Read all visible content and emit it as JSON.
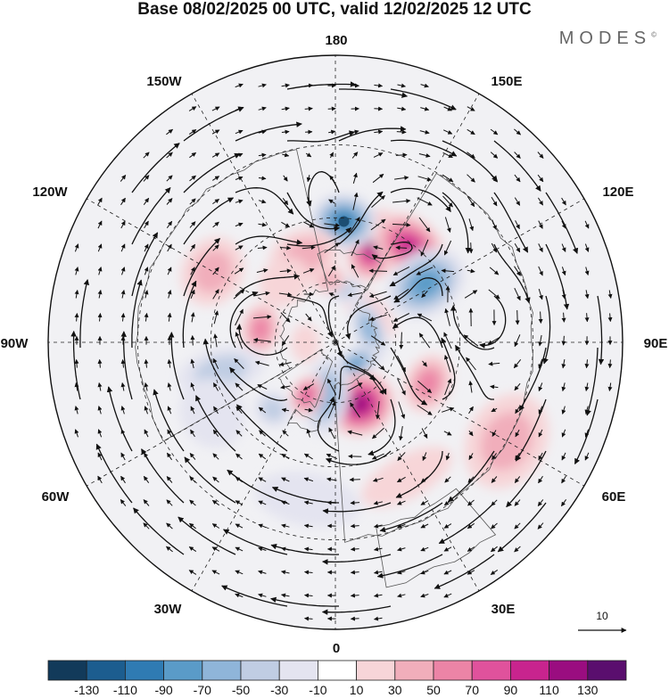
{
  "title": "Base 08/02/2025 00 UTC, valid 12/02/2025 12 UTC",
  "brand": "MODES",
  "brand_mark": "©",
  "longitude_labels": {
    "top": "180",
    "top_left": "150W",
    "top_right": "150E",
    "upper_left": "120W",
    "upper_right": "120E",
    "left": "90W",
    "right": "90E",
    "lower_left": "60W",
    "lower_right": "60E",
    "bottom_left": "30W",
    "bottom_right": "30E",
    "bottom": "0"
  },
  "vector_reference": {
    "label": "10"
  },
  "colorbar": {
    "colors": [
      "#123a5a",
      "#1c5d8f",
      "#2f7bb3",
      "#5a9bc8",
      "#8fb5d9",
      "#c0cde3",
      "#e4e4f0",
      "#ffffff",
      "#f7d5d8",
      "#f1aebb",
      "#ec84a6",
      "#e0529c",
      "#c8248e",
      "#9a0d80",
      "#5a0e6e"
    ],
    "labels": [
      "-130",
      "-110",
      "-90",
      "-70",
      "-50",
      "-30",
      "-10",
      "10",
      "30",
      "50",
      "70",
      "90",
      "110",
      "130"
    ]
  },
  "anomalies": [
    {
      "lon": 158,
      "colat": 34,
      "value": 120,
      "rx": 30,
      "ry": 42
    },
    {
      "lon": 176,
      "colat": 39,
      "value": -100,
      "rx": 38,
      "ry": 32
    },
    {
      "lon": 142,
      "colat": 39,
      "value": 90,
      "rx": 46,
      "ry": 33
    },
    {
      "lon": 123,
      "colat": 35,
      "value": -80,
      "rx": 36,
      "ry": 48
    },
    {
      "lon": 134,
      "colat": 15,
      "value": 40,
      "rx": 40,
      "ry": 18
    },
    {
      "lon": 110,
      "colat": 12,
      "value": -50,
      "rx": 38,
      "ry": 18
    },
    {
      "lon": 172,
      "colat": 18,
      "value": -40,
      "rx": 24,
      "ry": 16
    },
    {
      "lon": 186,
      "colat": 21,
      "value": 30,
      "rx": 20,
      "ry": 16
    },
    {
      "lon": 260,
      "colat": 25,
      "value": 60,
      "rx": 30,
      "ry": 22
    },
    {
      "lon": 272,
      "colat": 10,
      "value": 20,
      "rx": 22,
      "ry": 16
    },
    {
      "lon": 284,
      "colat": 38,
      "value": -40,
      "rx": 26,
      "ry": 50
    },
    {
      "lon": 66,
      "colat": 33,
      "value": 60,
      "rx": 34,
      "ry": 26
    },
    {
      "lon": 36,
      "colat": 10,
      "value": -80,
      "rx": 36,
      "ry": 18
    },
    {
      "lon": 22,
      "colat": 22,
      "value": 110,
      "rx": 40,
      "ry": 36
    },
    {
      "lon": 350,
      "colat": 18,
      "value": -60,
      "rx": 26,
      "ry": 46
    },
    {
      "lon": 332,
      "colat": 20,
      "value": 80,
      "rx": 18,
      "ry": 24
    },
    {
      "lon": 317,
      "colat": 30,
      "value": -30,
      "rx": 22,
      "ry": 20
    },
    {
      "lon": 60,
      "colat": 60,
      "value": 40,
      "rx": 56,
      "ry": 44
    },
    {
      "lon": 28,
      "colat": 48,
      "value": 20,
      "rx": 56,
      "ry": 24
    },
    {
      "lon": 300,
      "colat": 45,
      "value": -20,
      "rx": 40,
      "ry": 36
    },
    {
      "lon": 350,
      "colat": 50,
      "value": -20,
      "rx": 60,
      "ry": 30
    },
    {
      "lon": 200,
      "colat": 30,
      "value": 30,
      "rx": 40,
      "ry": 30
    },
    {
      "lon": 220,
      "colat": 26,
      "value": 20,
      "rx": 30,
      "ry": 26
    },
    {
      "lon": 240,
      "colat": 45,
      "value": 30,
      "rx": 40,
      "ry": 34
    }
  ],
  "cyclones": [
    {
      "lon": 158,
      "colat": 34,
      "dir": 1,
      "r": 34
    },
    {
      "lon": 176,
      "colat": 39,
      "dir": -1,
      "r": 34
    },
    {
      "lon": 142,
      "colat": 39,
      "dir": 1,
      "r": 40
    },
    {
      "lon": 123,
      "colat": 35,
      "dir": -1,
      "r": 36
    },
    {
      "lon": 66,
      "colat": 33,
      "dir": -1,
      "r": 26
    },
    {
      "lon": 22,
      "colat": 22,
      "dir": 1,
      "r": 30
    },
    {
      "lon": 260,
      "colat": 25,
      "dir": 1,
      "r": 24
    },
    {
      "lon": 110,
      "colat": 12,
      "dir": -1,
      "r": 22
    },
    {
      "lon": 350,
      "colat": 18,
      "dir": -1,
      "r": 20
    },
    {
      "lon": 90,
      "colat": 28,
      "dir": -1,
      "r": 28
    },
    {
      "lon": 100,
      "colat": 45,
      "dir": 1,
      "r": 30
    }
  ]
}
